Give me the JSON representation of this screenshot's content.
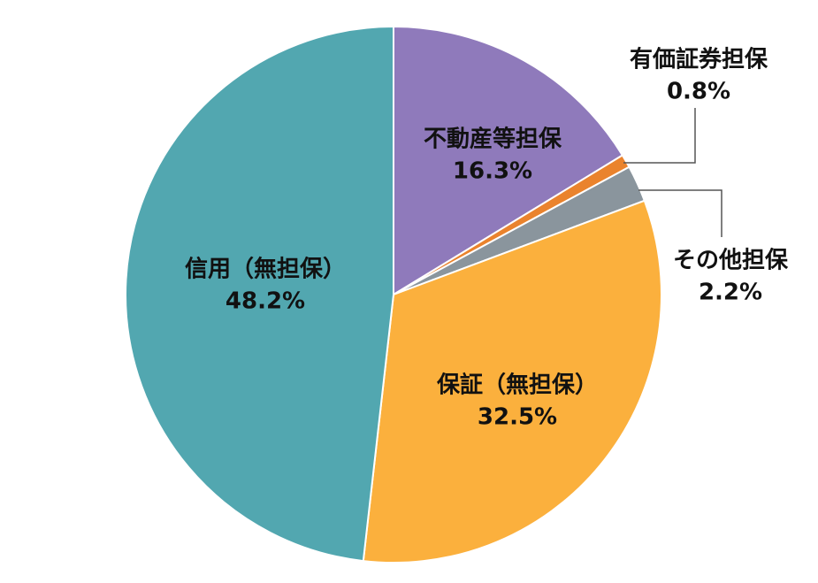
{
  "chart_data": {
    "type": "pie",
    "categories": [
      "不動産等担保",
      "有価証券担保",
      "その他担保",
      "保証（無担保）",
      "信用（無担保）"
    ],
    "values": [
      16.3,
      0.8,
      2.2,
      32.5,
      48.2
    ],
    "value_labels": [
      "16.3%",
      "0.8%",
      "2.2%",
      "32.5%",
      "48.2%"
    ],
    "colors": [
      "#8f7abb",
      "#ea832d",
      "#8a959d",
      "#fbb03d",
      "#52a7b0"
    ]
  }
}
